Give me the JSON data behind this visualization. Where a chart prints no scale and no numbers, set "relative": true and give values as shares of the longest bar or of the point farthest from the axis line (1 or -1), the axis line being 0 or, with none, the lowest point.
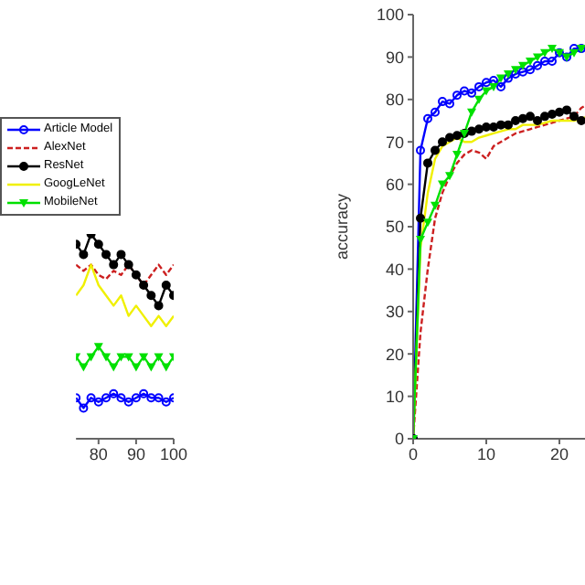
{
  "chart_data": [
    {
      "type": "line",
      "relative": true,
      "x": [
        74,
        76,
        78,
        80,
        82,
        84,
        86,
        88,
        90,
        92,
        94,
        96,
        98,
        100
      ],
      "xlim": [
        74,
        100
      ],
      "xticks": [
        80,
        90,
        100
      ],
      "legend": "left",
      "tick_labels": "x",
      "series": [
        {
          "name": "Article Model",
          "color": "#0000ff",
          "marker": "circle",
          "values": [
            0.2,
            0.15,
            0.2,
            0.18,
            0.2,
            0.22,
            0.2,
            0.18,
            0.2,
            0.22,
            0.2,
            0.2,
            0.18,
            0.2
          ]
        },
        {
          "name": "AlexNet",
          "color": "#cc2020",
          "line_style": "dashed",
          "marker": "none",
          "values": [
            0.85,
            0.82,
            0.85,
            0.8,
            0.78,
            0.82,
            0.8,
            0.85,
            0.8,
            0.75,
            0.8,
            0.85,
            0.8,
            0.85
          ]
        },
        {
          "name": "ResNet",
          "color": "#000000",
          "marker": "circle",
          "values": [
            0.95,
            0.9,
            1,
            0.95,
            0.9,
            0.85,
            0.9,
            0.85,
            0.8,
            0.75,
            0.7,
            0.65,
            0.75,
            0.7
          ]
        },
        {
          "name": "GoogLeNet",
          "color": "#f0f000",
          "marker": "none",
          "values": [
            0.7,
            0.75,
            0.85,
            0.75,
            0.7,
            0.65,
            0.7,
            0.6,
            0.65,
            0.6,
            0.55,
            0.6,
            0.55,
            0.6
          ]
        },
        {
          "name": "MobileNet",
          "color": "#00e000",
          "marker": "triangle",
          "values": [
            0.4,
            0.35,
            0.4,
            0.45,
            0.4,
            0.35,
            0.4,
            0.4,
            0.35,
            0.4,
            0.35,
            0.4,
            0.35,
            0.4
          ]
        }
      ]
    },
    {
      "type": "line",
      "ylabel": "accuracy",
      "x": [
        0,
        1,
        2,
        3,
        4,
        5,
        6,
        7,
        8,
        9,
        10,
        11,
        12,
        13,
        14,
        15,
        16,
        17,
        18,
        19,
        20,
        21,
        22,
        23,
        24
      ],
      "xlim": [
        0,
        25
      ],
      "xticks": [
        0,
        10,
        20
      ],
      "ylim": [
        0,
        100
      ],
      "yticks": [
        0,
        10,
        20,
        30,
        40,
        50,
        60,
        70,
        80,
        90,
        100
      ],
      "legend": false,
      "series": [
        {
          "color": "#0000ff",
          "marker": "circle",
          "values": [
            0,
            68,
            75.5,
            77,
            79.5,
            79,
            81,
            82,
            81.5,
            83,
            84,
            84.5,
            83,
            85,
            86,
            86.5,
            87,
            88,
            89,
            89,
            91,
            90,
            92,
            92,
            92
          ]
        },
        {
          "color": "#cc2020",
          "line_style": "dashed",
          "marker": "none",
          "values": [
            0,
            25,
            40,
            52,
            58,
            62,
            65,
            67,
            68,
            67.5,
            66,
            69,
            70,
            71,
            72,
            72.5,
            73,
            73.5,
            74,
            74.5,
            75,
            75.5,
            76,
            78,
            79
          ]
        },
        {
          "color": "#000000",
          "marker": "circle",
          "values": [
            0,
            52,
            65,
            68,
            70,
            71,
            71.5,
            72,
            72.5,
            73,
            73.5,
            73.5,
            74,
            74,
            75,
            75.5,
            76,
            75,
            76,
            76.5,
            77,
            77.5,
            76,
            75,
            75
          ]
        },
        {
          "color": "#f0f000",
          "marker": "none",
          "values": [
            0,
            45,
            58,
            66,
            69,
            70,
            71,
            70,
            70,
            71,
            71.5,
            72,
            72.5,
            73,
            73,
            74,
            74,
            74,
            74.5,
            75,
            75,
            75,
            75,
            75.5,
            76
          ]
        },
        {
          "color": "#00e000",
          "marker": "triangle",
          "values": [
            0,
            47,
            51,
            55,
            60,
            62,
            67,
            72,
            77,
            80,
            82,
            83,
            85,
            86,
            87,
            88,
            89,
            90,
            91,
            92,
            91,
            90,
            91,
            92,
            92
          ]
        }
      ]
    }
  ]
}
